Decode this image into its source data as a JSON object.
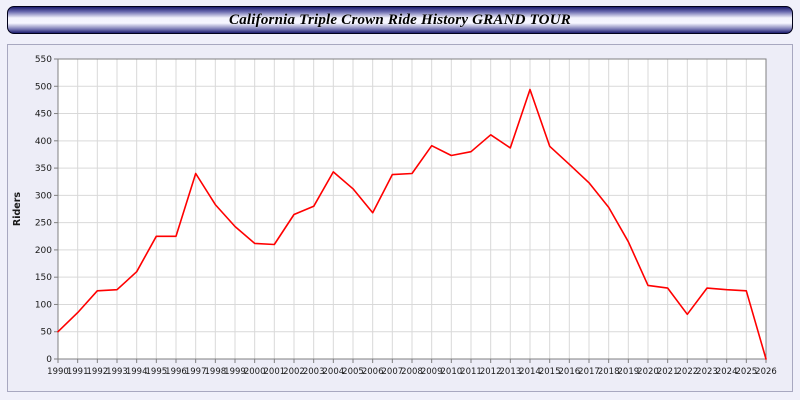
{
  "title": "California Triple Crown Ride History GRAND TOUR",
  "chart_data": {
    "type": "line",
    "title": "California Triple Crown Ride History GRAND TOUR",
    "xlabel": "",
    "ylabel": "Riders",
    "ylim": [
      0,
      550
    ],
    "y_ticks": [
      0,
      50,
      100,
      150,
      200,
      250,
      300,
      350,
      400,
      450,
      500,
      550
    ],
    "grid": true,
    "legend": "none",
    "line_color": "#ff0000",
    "plot_bg": "#ffffff",
    "grid_color": "#d9d9d9",
    "axis_color": "#808080",
    "tick_text_color": "#1a1a1a",
    "categories": [
      1990,
      1991,
      1992,
      1993,
      1994,
      1995,
      1996,
      1997,
      1998,
      1999,
      2000,
      2001,
      2002,
      2003,
      2004,
      2005,
      2006,
      2007,
      2008,
      2009,
      2010,
      2011,
      2012,
      2013,
      2014,
      2015,
      2016,
      2017,
      2018,
      2019,
      2020,
      2021,
      2022,
      2023,
      2024,
      2025,
      2026
    ],
    "values": [
      50,
      85,
      125,
      127,
      160,
      225,
      225,
      340,
      283,
      243,
      212,
      210,
      265,
      280,
      343,
      312,
      268,
      338,
      340,
      391,
      373,
      380,
      411,
      387,
      494,
      390,
      357,
      323,
      278,
      215,
      135,
      130,
      82,
      130,
      127,
      125,
      0
    ]
  }
}
